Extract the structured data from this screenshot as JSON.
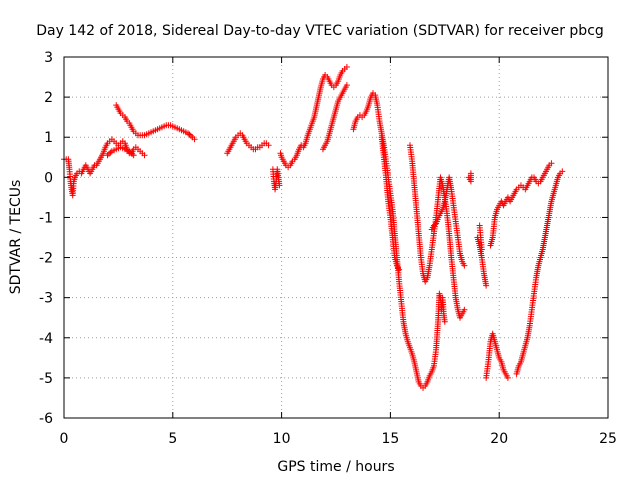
{
  "chart_data": {
    "type": "scatter",
    "title": "Day 142 of 2018, Sidereal Day-to-day VTEC variation (SDTVAR) for receiver pbcg",
    "xlabel": "GPS time / hours",
    "ylabel": "SDTVAR / TECUs",
    "xlim": [
      0,
      25
    ],
    "ylim": [
      -6,
      3
    ],
    "xticks": [
      0,
      5,
      10,
      15,
      20,
      25
    ],
    "yticks": [
      -6,
      -5,
      -4,
      -3,
      -2,
      -1,
      0,
      1,
      2,
      3
    ],
    "grid": true,
    "marker": "plus",
    "color": "#ff0000",
    "segments": [
      [
        [
          0.0,
          0.45
        ],
        [
          0.2,
          0.45
        ],
        [
          0.25,
          0.2
        ],
        [
          0.3,
          -0.1
        ],
        [
          0.35,
          -0.3
        ],
        [
          0.4,
          -0.45
        ],
        [
          0.45,
          -0.1
        ],
        [
          0.5,
          0.0
        ],
        [
          0.6,
          0.1
        ],
        [
          0.7,
          0.15
        ],
        [
          0.8,
          0.1
        ],
        [
          0.9,
          0.2
        ],
        [
          1.0,
          0.3
        ],
        [
          1.1,
          0.2
        ],
        [
          1.2,
          0.1
        ],
        [
          1.3,
          0.2
        ],
        [
          1.4,
          0.3
        ],
        [
          1.5,
          0.3
        ],
        [
          1.6,
          0.4
        ],
        [
          1.7,
          0.5
        ],
        [
          1.8,
          0.6
        ],
        [
          1.9,
          0.75
        ],
        [
          2.0,
          0.85
        ],
        [
          2.1,
          0.9
        ],
        [
          2.2,
          0.95
        ],
        [
          2.3,
          0.9
        ],
        [
          2.4,
          0.85
        ],
        [
          2.5,
          0.8
        ],
        [
          2.6,
          0.85
        ],
        [
          2.7,
          0.9
        ],
        [
          2.8,
          0.85
        ],
        [
          2.9,
          0.7
        ],
        [
          3.0,
          0.6
        ],
        [
          3.1,
          0.6
        ],
        [
          3.2,
          0.7
        ],
        [
          3.3,
          0.75
        ],
        [
          3.4,
          0.7
        ],
        [
          3.5,
          0.65
        ],
        [
          3.6,
          0.6
        ],
        [
          3.7,
          0.55
        ]
      ],
      [
        [
          2.0,
          0.55
        ],
        [
          2.2,
          0.65
        ],
        [
          2.4,
          0.7
        ],
        [
          2.6,
          0.75
        ],
        [
          2.8,
          0.7
        ],
        [
          3.0,
          0.65
        ],
        [
          3.2,
          0.55
        ]
      ],
      [
        [
          2.4,
          1.8
        ],
        [
          2.5,
          1.7
        ],
        [
          2.6,
          1.6
        ],
        [
          2.7,
          1.55
        ],
        [
          2.8,
          1.5
        ],
        [
          2.9,
          1.4
        ],
        [
          3.0,
          1.35
        ],
        [
          3.1,
          1.25
        ],
        [
          3.2,
          1.15
        ],
        [
          3.3,
          1.1
        ],
        [
          3.4,
          1.05
        ],
        [
          3.5,
          1.05
        ],
        [
          3.7,
          1.05
        ],
        [
          3.9,
          1.1
        ],
        [
          4.1,
          1.15
        ],
        [
          4.3,
          1.2
        ],
        [
          4.5,
          1.25
        ],
        [
          4.7,
          1.3
        ],
        [
          4.9,
          1.3
        ],
        [
          5.1,
          1.25
        ],
        [
          5.3,
          1.2
        ],
        [
          5.5,
          1.15
        ],
        [
          5.7,
          1.1
        ],
        [
          5.9,
          1.0
        ],
        [
          6.0,
          0.95
        ]
      ],
      [
        [
          7.5,
          0.6
        ],
        [
          7.6,
          0.7
        ],
        [
          7.7,
          0.8
        ],
        [
          7.8,
          0.9
        ],
        [
          7.9,
          1.0
        ],
        [
          8.0,
          1.05
        ],
        [
          8.1,
          1.1
        ],
        [
          8.2,
          1.05
        ],
        [
          8.3,
          0.95
        ],
        [
          8.4,
          0.85
        ],
        [
          8.5,
          0.8
        ],
        [
          8.6,
          0.75
        ],
        [
          8.7,
          0.7
        ],
        [
          8.8,
          0.7
        ],
        [
          8.9,
          0.75
        ],
        [
          9.0,
          0.75
        ],
        [
          9.1,
          0.8
        ],
        [
          9.2,
          0.85
        ],
        [
          9.3,
          0.85
        ],
        [
          9.4,
          0.8
        ]
      ],
      [
        [
          9.6,
          0.2
        ],
        [
          9.65,
          -0.1
        ],
        [
          9.7,
          -0.3
        ],
        [
          9.75,
          -0.1
        ],
        [
          9.8,
          0.2
        ],
        [
          9.85,
          0.0
        ],
        [
          9.9,
          -0.2
        ]
      ],
      [
        [
          9.95,
          0.6
        ],
        [
          10.0,
          0.5
        ],
        [
          10.1,
          0.4
        ],
        [
          10.2,
          0.3
        ],
        [
          10.3,
          0.25
        ],
        [
          10.4,
          0.3
        ],
        [
          10.5,
          0.4
        ],
        [
          10.6,
          0.45
        ],
        [
          10.7,
          0.55
        ],
        [
          10.8,
          0.7
        ],
        [
          10.9,
          0.8
        ],
        [
          11.0,
          0.75
        ],
        [
          11.1,
          0.85
        ],
        [
          11.2,
          1.05
        ],
        [
          11.3,
          1.2
        ],
        [
          11.4,
          1.35
        ],
        [
          11.5,
          1.5
        ],
        [
          11.6,
          1.75
        ],
        [
          11.7,
          2.0
        ],
        [
          11.8,
          2.25
        ],
        [
          11.9,
          2.45
        ],
        [
          12.0,
          2.55
        ],
        [
          12.1,
          2.5
        ],
        [
          12.2,
          2.4
        ],
        [
          12.3,
          2.3
        ],
        [
          12.4,
          2.25
        ],
        [
          12.5,
          2.3
        ],
        [
          12.6,
          2.4
        ],
        [
          12.7,
          2.55
        ],
        [
          12.8,
          2.65
        ],
        [
          12.9,
          2.7
        ],
        [
          13.0,
          2.75
        ]
      ],
      [
        [
          11.9,
          0.7
        ],
        [
          12.0,
          0.8
        ],
        [
          12.1,
          0.9
        ],
        [
          12.2,
          1.1
        ],
        [
          12.3,
          1.3
        ],
        [
          12.4,
          1.5
        ],
        [
          12.5,
          1.7
        ],
        [
          12.6,
          1.9
        ],
        [
          12.7,
          2.0
        ],
        [
          12.8,
          2.1
        ],
        [
          12.9,
          2.2
        ],
        [
          13.0,
          2.3
        ]
      ],
      [
        [
          13.3,
          1.2
        ],
        [
          13.4,
          1.4
        ],
        [
          13.5,
          1.5
        ],
        [
          13.6,
          1.55
        ],
        [
          13.7,
          1.5
        ],
        [
          13.8,
          1.55
        ],
        [
          13.9,
          1.65
        ],
        [
          14.0,
          1.8
        ],
        [
          14.1,
          2.0
        ],
        [
          14.2,
          2.1
        ],
        [
          14.3,
          2.05
        ],
        [
          14.4,
          1.8
        ],
        [
          14.5,
          1.4
        ],
        [
          14.6,
          1.1
        ],
        [
          14.7,
          0.8
        ],
        [
          14.8,
          0.4
        ],
        [
          14.9,
          0.0
        ],
        [
          15.0,
          -0.4
        ],
        [
          15.1,
          -0.8
        ],
        [
          15.2,
          -1.4
        ],
        [
          15.3,
          -2.0
        ],
        [
          15.4,
          -2.6
        ],
        [
          15.5,
          -3.1
        ],
        [
          15.6,
          -3.6
        ],
        [
          15.7,
          -3.9
        ],
        [
          15.8,
          -4.1
        ],
        [
          15.9,
          -4.25
        ],
        [
          16.0,
          -4.4
        ],
        [
          16.1,
          -4.6
        ],
        [
          16.2,
          -4.85
        ],
        [
          16.3,
          -5.1
        ],
        [
          16.4,
          -5.2
        ],
        [
          16.5,
          -5.25
        ],
        [
          16.6,
          -5.2
        ],
        [
          16.7,
          -5.1
        ],
        [
          16.8,
          -4.95
        ],
        [
          16.9,
          -4.85
        ],
        [
          17.0,
          -4.7
        ],
        [
          17.1,
          -4.3
        ],
        [
          17.2,
          -3.5
        ],
        [
          17.25,
          -2.9
        ],
        [
          17.3,
          -3.0
        ],
        [
          17.35,
          -3.3
        ],
        [
          17.4,
          -3.0
        ],
        [
          17.45,
          -3.4
        ],
        [
          17.5,
          -3.6
        ]
      ],
      [
        [
          14.6,
          1.0
        ],
        [
          14.7,
          0.5
        ],
        [
          14.8,
          0.0
        ],
        [
          14.9,
          -0.6
        ],
        [
          15.0,
          -1.0
        ],
        [
          15.1,
          -1.5
        ],
        [
          15.2,
          -2.0
        ],
        [
          15.3,
          -2.2
        ],
        [
          15.4,
          -2.3
        ]
      ],
      [
        [
          15.9,
          0.8
        ],
        [
          16.0,
          0.4
        ],
        [
          16.1,
          -0.2
        ],
        [
          16.2,
          -0.8
        ],
        [
          16.3,
          -1.4
        ],
        [
          16.4,
          -2.0
        ],
        [
          16.5,
          -2.4
        ],
        [
          16.6,
          -2.6
        ],
        [
          16.7,
          -2.5
        ],
        [
          16.8,
          -2.2
        ],
        [
          16.9,
          -1.8
        ],
        [
          17.0,
          -1.4
        ],
        [
          17.1,
          -1.0
        ],
        [
          17.2,
          -0.5
        ],
        [
          17.3,
          0.0
        ],
        [
          17.4,
          -0.2
        ],
        [
          17.5,
          -0.5
        ],
        [
          17.6,
          -0.9
        ],
        [
          17.7,
          -1.4
        ],
        [
          17.8,
          -2.0
        ],
        [
          17.9,
          -2.5
        ],
        [
          18.0,
          -3.0
        ],
        [
          18.1,
          -3.3
        ],
        [
          18.2,
          -3.5
        ],
        [
          18.3,
          -3.4
        ],
        [
          18.4,
          -3.3
        ]
      ],
      [
        [
          16.9,
          -1.3
        ],
        [
          17.0,
          -1.2
        ],
        [
          17.1,
          -1.15
        ],
        [
          17.2,
          -1.0
        ],
        [
          17.3,
          -0.9
        ],
        [
          17.4,
          -0.8
        ],
        [
          17.5,
          -0.6
        ],
        [
          17.6,
          -0.3
        ],
        [
          17.7,
          0.0
        ],
        [
          17.8,
          -0.3
        ],
        [
          17.9,
          -0.7
        ],
        [
          18.0,
          -1.1
        ],
        [
          18.1,
          -1.5
        ],
        [
          18.2,
          -1.9
        ],
        [
          18.3,
          -2.1
        ],
        [
          18.4,
          -2.2
        ]
      ],
      [
        [
          18.6,
          0.0
        ],
        [
          18.7,
          -0.1
        ],
        [
          18.7,
          0.1
        ]
      ],
      [
        [
          19.0,
          -1.5
        ],
        [
          19.1,
          -1.7
        ],
        [
          19.2,
          -2.0
        ],
        [
          19.3,
          -2.4
        ],
        [
          19.4,
          -2.7
        ]
      ],
      [
        [
          19.1,
          -1.2
        ],
        [
          19.15,
          -1.5
        ],
        [
          19.2,
          -1.8
        ]
      ],
      [
        [
          19.4,
          -5.0
        ],
        [
          19.5,
          -4.6
        ],
        [
          19.6,
          -4.1
        ],
        [
          19.7,
          -3.9
        ],
        [
          19.8,
          -4.1
        ],
        [
          19.9,
          -4.3
        ],
        [
          20.0,
          -4.5
        ],
        [
          20.1,
          -4.6
        ],
        [
          20.2,
          -4.8
        ],
        [
          20.3,
          -4.9
        ],
        [
          20.4,
          -5.0
        ]
      ],
      [
        [
          19.6,
          -1.7
        ],
        [
          19.7,
          -1.5
        ],
        [
          19.8,
          -1.0
        ],
        [
          19.9,
          -0.8
        ],
        [
          20.0,
          -0.7
        ],
        [
          20.1,
          -0.6
        ],
        [
          20.2,
          -0.7
        ],
        [
          20.3,
          -0.6
        ],
        [
          20.4,
          -0.5
        ],
        [
          20.5,
          -0.6
        ],
        [
          20.6,
          -0.5
        ],
        [
          20.7,
          -0.4
        ],
        [
          20.8,
          -0.3
        ],
        [
          20.9,
          -0.25
        ],
        [
          21.0,
          -0.2
        ],
        [
          21.1,
          -0.25
        ],
        [
          21.2,
          -0.3
        ],
        [
          21.3,
          -0.2
        ],
        [
          21.4,
          -0.1
        ],
        [
          21.5,
          0.0
        ],
        [
          21.6,
          0.0
        ],
        [
          21.7,
          -0.1
        ],
        [
          21.8,
          -0.15
        ],
        [
          21.9,
          -0.1
        ],
        [
          22.0,
          0.0
        ],
        [
          22.1,
          0.1
        ],
        [
          22.2,
          0.2
        ],
        [
          22.3,
          0.3
        ],
        [
          22.4,
          0.35
        ]
      ],
      [
        [
          20.8,
          -4.9
        ],
        [
          20.9,
          -4.7
        ],
        [
          21.0,
          -4.6
        ],
        [
          21.1,
          -4.4
        ],
        [
          21.2,
          -4.2
        ],
        [
          21.3,
          -4.0
        ],
        [
          21.4,
          -3.7
        ],
        [
          21.5,
          -3.3
        ],
        [
          21.6,
          -2.9
        ],
        [
          21.7,
          -2.5
        ],
        [
          21.8,
          -2.2
        ],
        [
          21.9,
          -2.0
        ],
        [
          22.0,
          -1.8
        ],
        [
          22.1,
          -1.5
        ],
        [
          22.2,
          -1.2
        ],
        [
          22.3,
          -0.9
        ],
        [
          22.4,
          -0.6
        ],
        [
          22.5,
          -0.4
        ],
        [
          22.6,
          -0.2
        ],
        [
          22.7,
          0.0
        ],
        [
          22.8,
          0.1
        ],
        [
          22.9,
          0.15
        ]
      ]
    ]
  }
}
